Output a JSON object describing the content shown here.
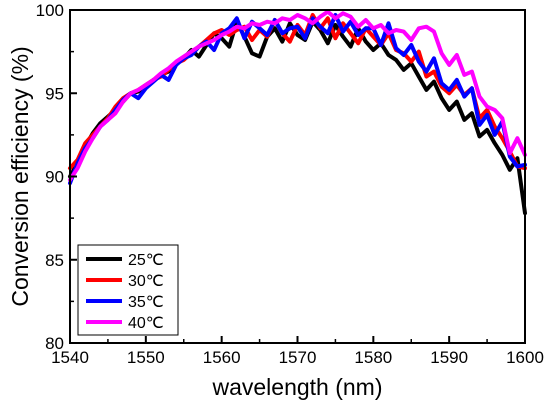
{
  "chart_data": {
    "type": "line",
    "title": "",
    "xlabel": "wavelength (nm)",
    "ylabel": "Conversion efficiency (%)",
    "xlim": [
      1540,
      1600
    ],
    "ylim": [
      80,
      100
    ],
    "xticks": [
      1540,
      1550,
      1560,
      1570,
      1580,
      1590,
      1600
    ],
    "yticks": [
      80,
      85,
      90,
      95,
      100
    ],
    "grid": false,
    "legend_position": "bottom-left",
    "x": [
      1540,
      1541,
      1542,
      1543,
      1544,
      1545,
      1546,
      1547,
      1548,
      1549,
      1550,
      1551,
      1552,
      1553,
      1554,
      1555,
      1556,
      1557,
      1558,
      1559,
      1560,
      1561,
      1562,
      1563,
      1564,
      1565,
      1566,
      1567,
      1568,
      1569,
      1570,
      1571,
      1572,
      1573,
      1574,
      1575,
      1576,
      1577,
      1578,
      1579,
      1580,
      1581,
      1582,
      1583,
      1584,
      1585,
      1586,
      1587,
      1588,
      1589,
      1590,
      1591,
      1592,
      1593,
      1594,
      1595,
      1596,
      1597,
      1598,
      1599,
      1600
    ],
    "series": [
      {
        "name": "25℃",
        "color": "#000000",
        "values": [
          90.0,
          90.8,
          91.8,
          92.6,
          93.2,
          93.6,
          94.0,
          94.5,
          95.0,
          95.1,
          95.4,
          95.8,
          96.1,
          96.3,
          96.8,
          97.1,
          97.6,
          97.2,
          97.9,
          98.6,
          98.3,
          97.8,
          99.3,
          98.4,
          97.4,
          97.2,
          98.4,
          98.9,
          98.1,
          99.2,
          98.5,
          98.2,
          99.3,
          98.8,
          98.0,
          99.1,
          98.4,
          97.8,
          98.9,
          98.1,
          97.6,
          98.0,
          97.3,
          97.0,
          96.4,
          96.8,
          96.0,
          95.2,
          95.7,
          94.7,
          94.0,
          94.5,
          93.4,
          93.8,
          92.4,
          92.8,
          92.0,
          91.3,
          90.4,
          91.1,
          87.8
        ]
      },
      {
        "name": "30℃",
        "color": "#ff0000",
        "values": [
          90.5,
          91.0,
          92.0,
          92.5,
          93.0,
          93.5,
          94.2,
          94.7,
          95.0,
          95.2,
          95.5,
          95.8,
          96.0,
          96.4,
          96.8,
          97.0,
          97.4,
          97.8,
          98.2,
          98.6,
          98.8,
          98.5,
          98.8,
          99.0,
          98.2,
          98.8,
          98.4,
          99.4,
          98.6,
          98.1,
          99.1,
          98.5,
          99.7,
          98.9,
          99.5,
          98.3,
          99.2,
          98.6,
          98.0,
          98.9,
          98.4,
          97.9,
          98.6,
          97.6,
          97.4,
          96.9,
          97.5,
          96.0,
          96.3,
          95.4,
          95.0,
          95.5,
          94.9,
          95.3,
          93.5,
          94.0,
          93.0,
          92.3,
          91.5,
          90.6,
          90.5
        ]
      },
      {
        "name": "35℃",
        "color": "#0000ff",
        "values": [
          89.6,
          90.8,
          91.7,
          92.3,
          93.0,
          93.4,
          94.0,
          94.6,
          95.0,
          94.7,
          95.3,
          95.7,
          96.1,
          95.8,
          96.7,
          97.1,
          97.3,
          97.8,
          98.1,
          97.6,
          98.6,
          98.9,
          99.5,
          98.3,
          99.3,
          98.9,
          98.5,
          99.4,
          98.6,
          98.9,
          99.0,
          98.3,
          99.5,
          99.0,
          98.6,
          99.7,
          98.7,
          99.3,
          98.5,
          98.9,
          98.9,
          97.9,
          99.2,
          97.7,
          97.3,
          97.9,
          96.9,
          96.3,
          97.1,
          95.6,
          95.2,
          95.8,
          94.8,
          95.3,
          93.1,
          93.7,
          92.5,
          93.3,
          91.2,
          90.6,
          90.7
        ]
      },
      {
        "name": "40℃",
        "color": "#ff00ff",
        "values": [
          89.8,
          90.5,
          91.5,
          92.3,
          93.0,
          93.4,
          93.8,
          94.5,
          95.0,
          95.2,
          95.5,
          95.8,
          96.2,
          96.5,
          96.9,
          97.2,
          97.5,
          97.8,
          98.0,
          98.2,
          98.5,
          98.7,
          99.0,
          98.9,
          99.2,
          99.1,
          99.3,
          99.2,
          99.5,
          99.4,
          99.7,
          99.5,
          99.2,
          99.6,
          99.9,
          99.5,
          99.8,
          99.6,
          99.0,
          99.4,
          98.9,
          99.1,
          98.6,
          98.8,
          98.7,
          98.2,
          98.9,
          99.0,
          98.7,
          97.4,
          96.7,
          97.3,
          96.1,
          96.3,
          94.8,
          94.2,
          94.0,
          93.5,
          91.4,
          92.3,
          91.3
        ]
      }
    ]
  }
}
